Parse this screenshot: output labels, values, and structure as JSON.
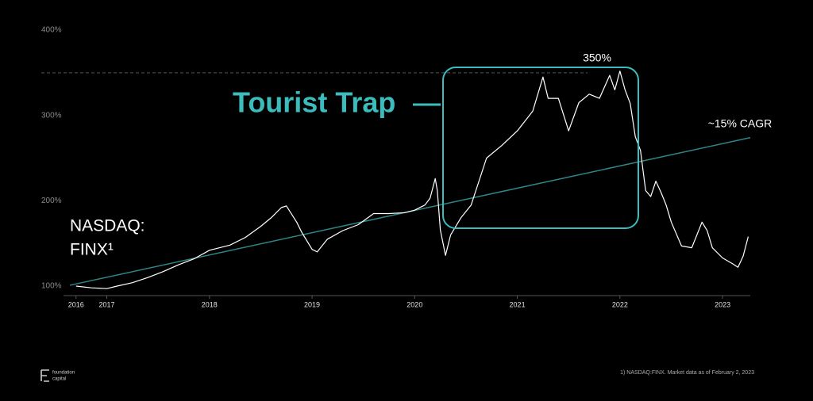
{
  "chart_data": {
    "type": "line",
    "series_label": [
      "NASDAQ:",
      "FINX¹"
    ],
    "color": "#ffffff",
    "x": [
      2016.7,
      2016.85,
      2017.0,
      2017.1,
      2017.25,
      2017.4,
      2017.55,
      2017.7,
      2017.85,
      2018.0,
      2018.1,
      2018.2,
      2018.35,
      2018.5,
      2018.6,
      2018.7,
      2018.75,
      2018.85,
      2018.9,
      2019.0,
      2019.05,
      2019.15,
      2019.3,
      2019.45,
      2019.6,
      2019.75,
      2019.9,
      2020.0,
      2020.1,
      2020.15,
      2020.2,
      2020.22,
      2020.25,
      2020.3,
      2020.35,
      2020.45,
      2020.55,
      2020.7,
      2020.85,
      2021.0,
      2021.15,
      2021.25,
      2021.3,
      2021.4,
      2021.5,
      2021.6,
      2021.7,
      2021.8,
      2021.9,
      2021.95,
      2022.0,
      2022.05,
      2022.1,
      2022.15,
      2022.2,
      2022.25,
      2022.3,
      2022.35,
      2022.4,
      2022.45,
      2022.5,
      2022.6,
      2022.7,
      2022.8,
      2022.85,
      2022.9,
      2023.0,
      2023.1,
      2023.15,
      2023.2,
      2023.25
    ],
    "values": [
      100,
      98,
      97,
      100,
      104,
      110,
      117,
      125,
      132,
      142,
      145,
      148,
      157,
      170,
      180,
      192,
      194,
      175,
      163,
      143,
      140,
      155,
      165,
      172,
      185,
      185,
      186,
      189,
      195,
      203,
      226,
      212,
      166,
      136,
      160,
      180,
      195,
      250,
      265,
      282,
      305,
      345,
      320,
      320,
      282,
      315,
      325,
      320,
      347,
      330,
      352,
      330,
      314,
      275,
      259,
      212,
      205,
      223,
      210,
      195,
      175,
      147,
      145,
      175,
      165,
      145,
      133,
      126,
      122,
      135,
      158
    ],
    "xlim": [
      2016.64,
      2023.27
    ],
    "xticks": [
      {
        "value": 2016.7,
        "label": "2016"
      },
      2017,
      2018,
      2019,
      2020,
      2021,
      2022,
      2023
    ],
    "ylim": [
      95,
      400
    ],
    "yticks": [
      {
        "value": 100,
        "label": "100%"
      },
      {
        "value": 200,
        "label": "200%"
      },
      {
        "value": 300,
        "label": "300%"
      },
      {
        "value": 400,
        "label": "400%"
      }
    ],
    "reference_line": {
      "value": 350,
      "label": "350%"
    },
    "trendline": {
      "x": [
        2016.64,
        2023.27
      ],
      "values": [
        101,
        274
      ],
      "label": "~15% CAGR",
      "color": "#2f8585"
    },
    "annotation": "Tourist Trap",
    "annotation_color": "#3cbcbc"
  },
  "footer": {
    "logo": [
      "foundation",
      "capital"
    ],
    "footnote": "1) NASDAQ:FINX. Market data as of February 2, 2023"
  }
}
